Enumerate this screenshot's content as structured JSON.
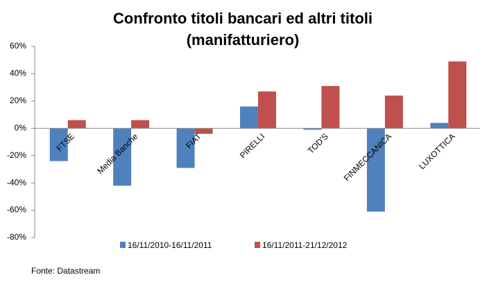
{
  "chart_data": {
    "type": "bar",
    "title": [
      "Confronto titoli bancari ed altri titoli",
      "(manifatturiero)"
    ],
    "categories": [
      "FTSE",
      "Media Banche",
      "FIAT",
      "PIRELLI",
      "TOD'S",
      "FINMECCANICA",
      "LUXOTTICA"
    ],
    "series": [
      {
        "name": "16/11/2010-16/11/2011",
        "color": "#4f81bd",
        "values": [
          -24,
          -42,
          -29,
          16,
          -1,
          -61,
          4
        ]
      },
      {
        "name": "16/11/2011-21/12/2012",
        "color": "#c0504d",
        "values": [
          6,
          6,
          -4,
          27,
          31,
          24,
          49
        ]
      }
    ],
    "ylim": [
      -80,
      60
    ],
    "yticks": [
      {
        "value": -80,
        "label": "-80%"
      },
      {
        "value": -60,
        "label": "-60%"
      },
      {
        "value": -40,
        "label": "-40%"
      },
      {
        "value": -20,
        "label": "-20%"
      },
      {
        "value": 0,
        "label": "0%"
      },
      {
        "value": 20,
        "label": "20%"
      },
      {
        "value": 40,
        "label": "40%"
      },
      {
        "value": 60,
        "label": "60%"
      }
    ],
    "grid": false,
    "legend": "bottom",
    "source": "Fonte: Datastream"
  }
}
